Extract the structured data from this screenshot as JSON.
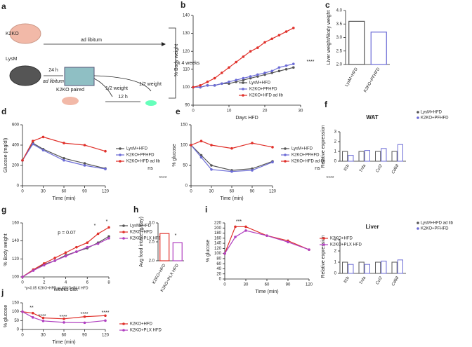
{
  "diagram": {
    "panel": "a",
    "mouse1": "K2KO",
    "mouse2": "LysM",
    "arrow1": "ad libitum",
    "step1_time": "24 h",
    "step1_label": "ad libitum",
    "paired": "K2KO paired",
    "half1": "1/2 weight",
    "half2": "1/2 weight",
    "step2_time": "12 h",
    "repeat": "x 4 weeks"
  },
  "chart_data": [
    {
      "type": "line",
      "panel": "b",
      "y_label": "% Body weight",
      "x_label": "Days HFD",
      "xlim": [
        0,
        30
      ],
      "xticks": [
        0,
        10,
        20,
        30
      ],
      "ylim": [
        90,
        140
      ],
      "yticks": [
        90,
        100,
        110,
        120,
        130,
        140
      ],
      "x": [
        0,
        2,
        4,
        6,
        8,
        10,
        12,
        14,
        16,
        18,
        20,
        22,
        24,
        26,
        28
      ],
      "series": [
        {
          "name": "LysM+HFD",
          "color": "#555555",
          "values": [
            100,
            100,
            101,
            101,
            102,
            102,
            103,
            104,
            105,
            106,
            107,
            108,
            109,
            110,
            111
          ]
        },
        {
          "name": "K2KO+PFHFD",
          "color": "#6b6bd6",
          "values": [
            100,
            100,
            101,
            101,
            102,
            103,
            104,
            105,
            106,
            107,
            108,
            109,
            111,
            112,
            113
          ]
        },
        {
          "name": "K2KO+HFD ad lib",
          "color": "#e0302a",
          "values": [
            100,
            101,
            103,
            105,
            108,
            111,
            114,
            117,
            120,
            122,
            125,
            127,
            129,
            131,
            133
          ]
        }
      ],
      "annotations": [
        "****"
      ]
    },
    {
      "type": "bar",
      "panel": "c",
      "y_label": "Liver weight/Body weight",
      "ylim": [
        2,
        4
      ],
      "yticks": [
        {
          "value": 2,
          "label": "2.0"
        },
        {
          "value": 2.5,
          "label": "2.5"
        },
        {
          "value": 3,
          "label": "3.0"
        },
        {
          "value": 3.5,
          "label": "3.5"
        },
        {
          "value": 4,
          "label": "4.0"
        }
      ],
      "categories": [
        "LysM+HFD",
        "K2KO+PFHFD"
      ],
      "values": [
        3.6,
        3.2
      ],
      "colors": [
        "#555555",
        "#6b6bd6"
      ],
      "annotations": []
    },
    {
      "type": "line",
      "panel": "d",
      "y_label": "Glucose (mg/dl)",
      "x_label": "Time (min)",
      "xlim": [
        0,
        120
      ],
      "xticks": [
        0,
        30,
        60,
        90,
        120
      ],
      "ylim": [
        0,
        600
      ],
      "yticks": [
        0,
        200,
        400,
        600
      ],
      "x": [
        0,
        15,
        30,
        60,
        90,
        120
      ],
      "series": [
        {
          "name": "LysM+HFD",
          "color": "#555555",
          "values": [
            250,
            420,
            360,
            270,
            220,
            170
          ]
        },
        {
          "name": "K2KO+PFHFD",
          "color": "#6b6bd6",
          "values": [
            250,
            410,
            350,
            250,
            200,
            165
          ]
        },
        {
          "name": "K2KO+HFD ad lib",
          "color": "#e0302a",
          "values": [
            250,
            440,
            480,
            420,
            400,
            340
          ]
        }
      ],
      "annotations": [
        "ns",
        "****"
      ]
    },
    {
      "type": "line",
      "panel": "e",
      "y_label": "% glucose",
      "x_label": "Time (min)",
      "xlim": [
        0,
        120
      ],
      "xticks": [
        0,
        30,
        60,
        90,
        120
      ],
      "ylim": [
        0,
        150
      ],
      "yticks": [
        0,
        50,
        100,
        150
      ],
      "x": [
        0,
        15,
        30,
        60,
        90,
        120
      ],
      "series": [
        {
          "name": "LysM+HFD",
          "color": "#555555",
          "values": [
            100,
            75,
            50,
            38,
            42,
            60
          ]
        },
        {
          "name": "K2KO+PFHFD",
          "color": "#6b6bd6",
          "values": [
            100,
            70,
            40,
            35,
            38,
            58
          ]
        },
        {
          "name": "K2KO+HFD ad lib",
          "color": "#e0302a",
          "values": [
            100,
            110,
            100,
            92,
            105,
            95
          ]
        }
      ],
      "annotations": [
        "ns",
        "****"
      ]
    },
    {
      "type": "groupbar",
      "panel": "f",
      "title": "WAT",
      "y_label": "Relative expression",
      "ylim": [
        0,
        3
      ],
      "yticks": [
        0,
        1,
        2,
        3
      ],
      "categories": [
        "Il1b",
        "Tnfa",
        "Ccl2",
        "Cd68"
      ],
      "series": [
        {
          "name": "LysM+HFD",
          "color": "#555555",
          "values": [
            1.0,
            1.0,
            1.0,
            1.0
          ]
        },
        {
          "name": "K2KO+PFHFD",
          "color": "#6b6bd6",
          "values": [
            0.6,
            1.1,
            1.3,
            1.7
          ]
        }
      ],
      "annotations": []
    },
    {
      "type": "groupbar",
      "title": "Liver",
      "y_label": "Relative expression",
      "ylim": [
        0,
        3
      ],
      "yticks": [
        0,
        1,
        2,
        3
      ],
      "categories": [
        "Il1b",
        "Tnfa",
        "Ccl2",
        "Cd68"
      ],
      "series": [
        {
          "name": "LysM+HFD ad lib",
          "color": "#555555",
          "values": [
            1.0,
            1.0,
            1.0,
            1.0
          ]
        },
        {
          "name": "K2KO+PFHFD",
          "color": "#6b6bd6",
          "values": [
            0.8,
            0.8,
            1.1,
            1.2
          ]
        }
      ],
      "annotations": []
    },
    {
      "type": "line",
      "panel": "g",
      "y_label": "% Body weight",
      "x_label": "Weeks diet",
      "xlim": [
        0,
        8
      ],
      "xticks": [
        0,
        2,
        4,
        6,
        8
      ],
      "ylim": [
        100,
        160
      ],
      "yticks": [
        100,
        120,
        140,
        160
      ],
      "x": [
        0,
        1,
        2,
        3,
        4,
        5,
        6,
        7,
        8
      ],
      "series": [
        {
          "name": "LysM+HFD",
          "color": "#555555",
          "values": [
            100,
            108,
            114,
            118,
            124,
            128,
            132,
            138,
            145
          ]
        },
        {
          "name": "K2KO+HFD",
          "color": "#e0302a",
          "values": [
            100,
            108,
            115,
            121,
            127,
            133,
            138,
            148,
            155
          ]
        },
        {
          "name": "K2KO+PLX HFD",
          "color": "#b040c0",
          "values": [
            100,
            107,
            113,
            118,
            123,
            128,
            133,
            137,
            143
          ]
        }
      ],
      "annotations": [
        "p = 0.07",
        "*",
        "*",
        "*p<0.05 K2KO+HFD vs K2KO+PLX HFD"
      ]
    },
    {
      "type": "bar",
      "panel": "h",
      "y_label": "Avg food intake (g/day)",
      "ylim": [
        2,
        3
      ],
      "yticks": [
        {
          "value": 2,
          "label": "2.0"
        },
        {
          "value": 2.5,
          "label": "2.5"
        },
        {
          "value": 3,
          "label": "3.0"
        }
      ],
      "categories": [
        "K2KO+HFD",
        "K2KO+PLX HFD"
      ],
      "values": [
        2.72,
        2.48
      ],
      "colors": [
        "#e0302a",
        "#b040c0"
      ],
      "annotations": [
        "*"
      ]
    },
    {
      "type": "line",
      "panel": "i",
      "y_label": "% glucose",
      "x_label": "Time (min)",
      "xlim": [
        0,
        120
      ],
      "xticks": [
        0,
        30,
        60,
        90,
        120
      ],
      "ylim": [
        0,
        220
      ],
      "yticks": [
        0,
        20,
        40,
        60,
        80,
        100,
        120,
        140,
        160,
        180,
        200,
        220
      ],
      "x": [
        0,
        15,
        30,
        60,
        90,
        120
      ],
      "series": [
        {
          "name": "K2KO+HFD",
          "color": "#e0302a",
          "values": [
            100,
            205,
            205,
            170,
            150,
            115
          ]
        },
        {
          "name": "K2KO+PLX HFD",
          "color": "#b040c0",
          "values": [
            100,
            165,
            190,
            170,
            145,
            115
          ]
        }
      ],
      "annotations": [
        "***"
      ]
    },
    {
      "type": "line",
      "panel": "j",
      "y_label": "% glucose",
      "x_label": "Time (min)",
      "xlim": [
        0,
        120
      ],
      "xticks": [
        0,
        30,
        60,
        90,
        120
      ],
      "ylim": [
        0,
        150
      ],
      "yticks": [
        0,
        50,
        100,
        150
      ],
      "x": [
        0,
        15,
        30,
        60,
        90,
        120
      ],
      "series": [
        {
          "name": "K2KO+HFD",
          "color": "#e0302a",
          "values": [
            100,
            92,
            65,
            60,
            72,
            78
          ]
        },
        {
          "name": "K2KO+PLX HFD",
          "color": "#b040c0",
          "values": [
            100,
            68,
            48,
            40,
            38,
            50
          ]
        }
      ],
      "annotations": [
        "**",
        "****",
        "****",
        "****",
        "****"
      ]
    }
  ]
}
